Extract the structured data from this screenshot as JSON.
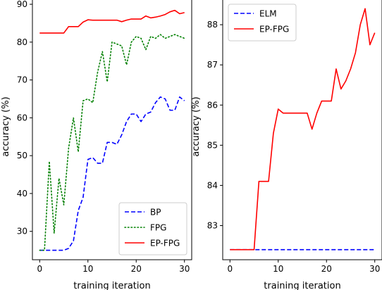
{
  "chart_data": [
    {
      "type": "line",
      "xlabel": "training iteration",
      "ylabel": "accuracy (%)",
      "xlim": [
        -1.5,
        31.5
      ],
      "ylim": [
        22.5,
        91.5
      ],
      "xticks": [
        0,
        10,
        20,
        30
      ],
      "yticks": [
        30,
        40,
        50,
        60,
        70,
        80,
        90
      ],
      "legend_position": "lower-right",
      "grid": false,
      "series": [
        {
          "name": "BP",
          "color": "#0000ff",
          "style": "dashed",
          "x": [
            0,
            1,
            2,
            3,
            4,
            5,
            6,
            7,
            8,
            9,
            10,
            11,
            12,
            13,
            14,
            15,
            16,
            17,
            18,
            19,
            20,
            21,
            22,
            23,
            24,
            25,
            26,
            27,
            28,
            29,
            30
          ],
          "y": [
            25,
            25,
            25,
            25,
            25,
            25,
            25.5,
            27.5,
            35.5,
            39,
            49,
            49.5,
            48,
            48,
            53.5,
            53.5,
            53,
            55.5,
            59,
            61,
            61,
            59,
            61,
            61.5,
            64,
            65.5,
            65,
            62,
            62,
            65.5,
            64.5
          ]
        },
        {
          "name": "FPG",
          "color": "#008000",
          "style": "dotted",
          "x": [
            0,
            1,
            2,
            3,
            4,
            5,
            6,
            7,
            8,
            9,
            10,
            11,
            12,
            13,
            14,
            15,
            16,
            17,
            18,
            19,
            20,
            21,
            22,
            23,
            24,
            25,
            26,
            27,
            28,
            29,
            30
          ],
          "y": [
            25,
            25,
            48.5,
            29.5,
            44,
            37,
            52,
            60,
            51,
            64.5,
            65,
            64,
            72,
            77.5,
            69.5,
            80,
            79.5,
            79,
            74,
            80,
            81.5,
            81,
            78,
            81.5,
            81,
            82,
            81,
            81.5,
            82,
            81.5,
            81
          ]
        },
        {
          "name": "EP-FPG",
          "color": "#ff0000",
          "style": "solid",
          "x": [
            0,
            1,
            2,
            3,
            4,
            5,
            6,
            7,
            8,
            9,
            10,
            11,
            12,
            13,
            14,
            15,
            16,
            17,
            18,
            19,
            20,
            21,
            22,
            23,
            24,
            25,
            26,
            27,
            28,
            29,
            30
          ],
          "y": [
            82.4,
            82.4,
            82.4,
            82.4,
            82.4,
            82.4,
            84.1,
            84.1,
            84.1,
            85.3,
            85.9,
            85.8,
            85.8,
            85.8,
            85.8,
            85.8,
            85.8,
            85.4,
            85.8,
            86.1,
            86.1,
            86.1,
            86.9,
            86.4,
            86.6,
            86.9,
            87.3,
            88.0,
            88.4,
            87.5,
            87.8
          ]
        }
      ]
    },
    {
      "type": "line",
      "xlabel": "training iteration",
      "ylabel": "accuracy (%)",
      "xlim": [
        -1.5,
        31.5
      ],
      "ylim": [
        82.15,
        88.65
      ],
      "xticks": [
        0,
        10,
        20,
        30
      ],
      "yticks": [
        83,
        84,
        85,
        86,
        87,
        88
      ],
      "legend_position": "upper-left",
      "grid": false,
      "series": [
        {
          "name": "ELM",
          "color": "#0000ff",
          "style": "dashed",
          "x": [
            0,
            30
          ],
          "y": [
            82.4,
            82.4
          ]
        },
        {
          "name": "EP-FPG",
          "color": "#ff0000",
          "style": "solid",
          "x": [
            0,
            1,
            2,
            3,
            4,
            5,
            6,
            7,
            8,
            9,
            10,
            11,
            12,
            13,
            14,
            15,
            16,
            17,
            18,
            19,
            20,
            21,
            22,
            23,
            24,
            25,
            26,
            27,
            28,
            29,
            30
          ],
          "y": [
            82.4,
            82.4,
            82.4,
            82.4,
            82.4,
            82.4,
            84.1,
            84.1,
            84.1,
            85.3,
            85.9,
            85.8,
            85.8,
            85.8,
            85.8,
            85.8,
            85.8,
            85.4,
            85.8,
            86.1,
            86.1,
            86.1,
            86.9,
            86.4,
            86.6,
            86.9,
            87.3,
            88.0,
            88.4,
            87.5,
            87.8
          ]
        }
      ]
    }
  ]
}
